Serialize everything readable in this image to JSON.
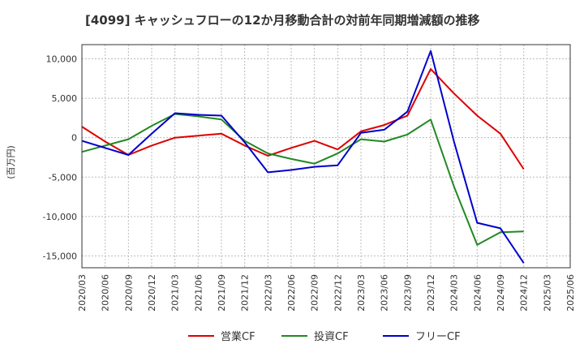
{
  "chart_data": {
    "type": "line",
    "title": "[4099]  キャッシュフローの12か月移動合計の対前年同期増減額の推移",
    "ylabel": "(百万円)",
    "xlabel": "",
    "ylim": [
      -16500,
      11800
    ],
    "yticks": [
      -15000,
      -10000,
      -5000,
      0,
      5000,
      10000
    ],
    "ytick_labels": [
      "-15,000",
      "-10,000",
      "-5,000",
      "0",
      "5,000",
      "10,000"
    ],
    "categories": [
      "2020/03",
      "2020/06",
      "2020/09",
      "2020/12",
      "2021/03",
      "2021/06",
      "2021/09",
      "2021/12",
      "2022/03",
      "2022/06",
      "2022/09",
      "2022/12",
      "2023/03",
      "2023/06",
      "2023/09",
      "2023/12",
      "2024/03",
      "2024/06",
      "2024/09",
      "2024/12",
      "2025/03",
      "2025/06"
    ],
    "grid": true,
    "legend_position": "bottom",
    "series": [
      {
        "name": "営業CF",
        "color": "#dd0000",
        "values": [
          1400,
          -500,
          -2200,
          -1000,
          0,
          250,
          500,
          -1000,
          -2300,
          -1300,
          -400,
          -1500,
          800,
          1600,
          2800,
          8700,
          5600,
          2800,
          500,
          -4000,
          null,
          null
        ]
      },
      {
        "name": "投資CF",
        "color": "#228822",
        "values": [
          -1800,
          -1000,
          -200,
          1500,
          3000,
          2700,
          2300,
          -400,
          -2000,
          -2700,
          -3300,
          -2000,
          -200,
          -500,
          400,
          2300,
          -6200,
          -13600,
          -12000,
          -11900,
          null,
          null
        ]
      },
      {
        "name": "フリーCF",
        "color": "#0000cc",
        "values": [
          -400,
          -1300,
          -2200,
          500,
          3100,
          2900,
          2800,
          -600,
          -4400,
          -4100,
          -3700,
          -3500,
          600,
          1000,
          3300,
          11000,
          -500,
          -10800,
          -11500,
          -15900,
          null,
          null
        ]
      }
    ]
  }
}
